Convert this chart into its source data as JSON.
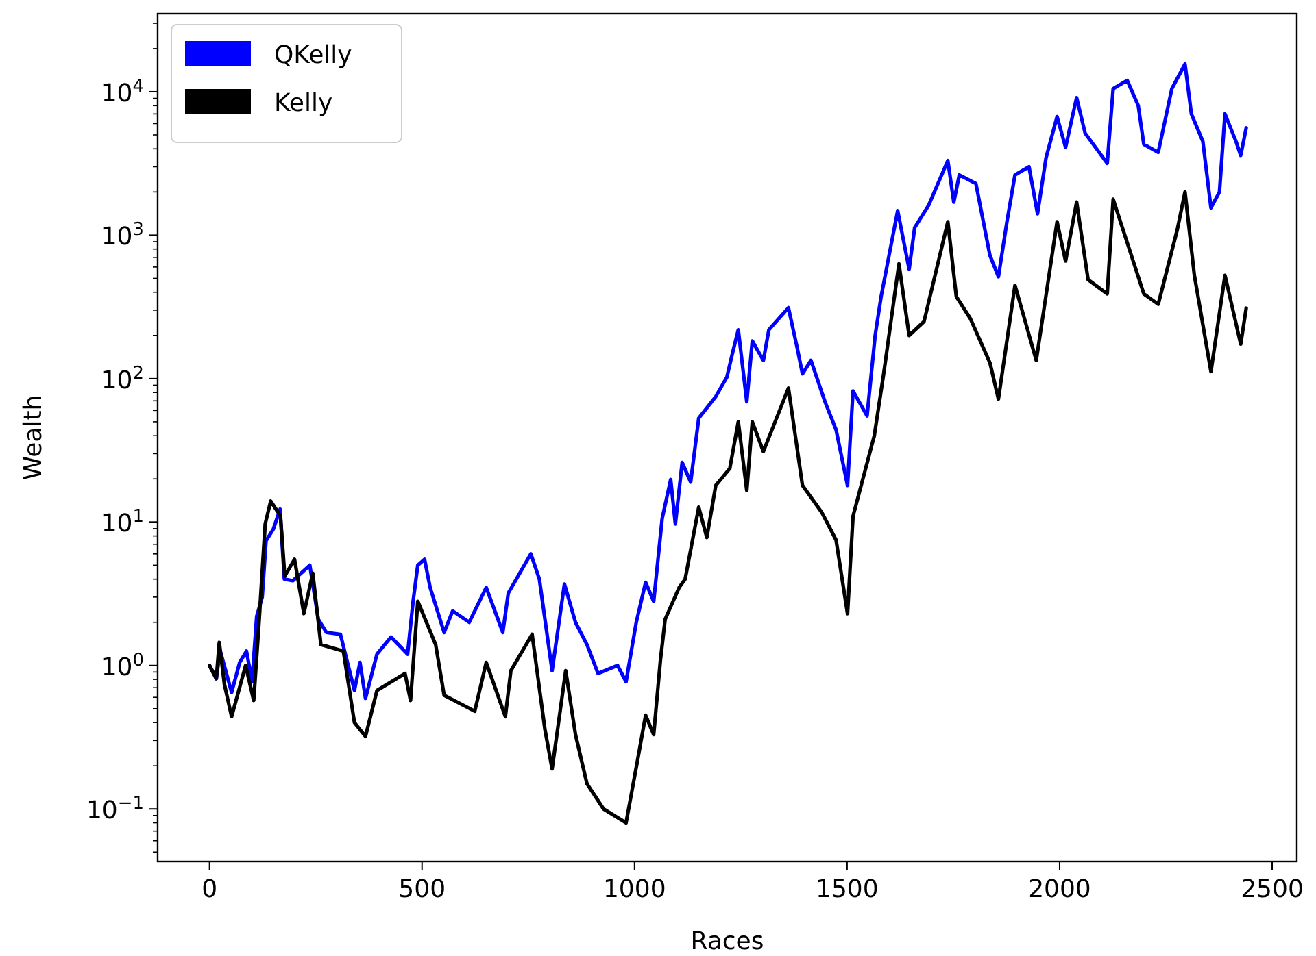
{
  "chart_data": {
    "type": "line",
    "xlabel": "Races",
    "ylabel": "Wealth",
    "log": "y",
    "grid": false,
    "legend": "top left",
    "marker": "none",
    "line_style": "solid",
    "xlim": [
      -122,
      2558
    ],
    "xticks": [
      0,
      500,
      1000,
      1500,
      2000,
      2500
    ],
    "ylim": [
      0.043,
      35000
    ],
    "yticks": [
      {
        "value": 0.1,
        "label": "10$^{−1}$"
      },
      {
        "value": 1,
        "label": "10$^{0}$"
      },
      {
        "value": 10,
        "label": "10$^{1}$"
      },
      {
        "value": 100,
        "label": "10$^{2}$"
      },
      {
        "value": 1000,
        "label": "10$^{3}$"
      },
      {
        "value": 10000,
        "label": "10$^{4}$"
      }
    ],
    "series": [
      {
        "name": "QKelly",
        "color": "#0000ff",
        "x": [
          0,
          16,
          25,
          52,
          71,
          87,
          100,
          111,
          124,
          133,
          150,
          166,
          176,
          196,
          236,
          256,
          275,
          308,
          341,
          354,
          367,
          394,
          427,
          466,
          479,
          490,
          506,
          519,
          552,
          572,
          611,
          651,
          690,
          703,
          756,
          776,
          806,
          835,
          861,
          888,
          914,
          960,
          980,
          1004,
          1026,
          1045,
          1065,
          1085,
          1096,
          1112,
          1132,
          1151,
          1191,
          1217,
          1231,
          1244,
          1264,
          1277,
          1303,
          1316,
          1362,
          1382,
          1395,
          1415,
          1448,
          1474,
          1501,
          1514,
          1547,
          1566,
          1580,
          1619,
          1646,
          1659,
          1692,
          1737,
          1751,
          1764,
          1803,
          1836,
          1856,
          1876,
          1895,
          1928,
          1948,
          1968,
          1994,
          2014,
          2040,
          2060,
          2112,
          2126,
          2159,
          2185,
          2198,
          2232,
          2264,
          2295,
          2310,
          2337,
          2356,
          2376,
          2389,
          2415,
          2426,
          2439
        ],
        "values": [
          1.0,
          0.81,
          1.27,
          0.65,
          1.05,
          1.26,
          0.77,
          2.2,
          3.0,
          7.4,
          8.9,
          12.3,
          4.0,
          3.9,
          5.0,
          2.1,
          1.7,
          1.65,
          0.67,
          1.05,
          0.59,
          1.2,
          1.58,
          1.2,
          2.8,
          5.0,
          5.5,
          3.5,
          1.7,
          2.4,
          2.0,
          3.5,
          1.7,
          3.2,
          6.0,
          4.0,
          0.92,
          3.7,
          2.0,
          1.4,
          0.88,
          1.0,
          0.77,
          2.0,
          3.8,
          2.8,
          10.6,
          19.8,
          9.7,
          26,
          19,
          53,
          75,
          102,
          153,
          219,
          69,
          183,
          134,
          219,
          312,
          167,
          108,
          134,
          69,
          44,
          18,
          82,
          55,
          200,
          373,
          1480,
          580,
          1130,
          1620,
          3310,
          1700,
          2630,
          2290,
          724,
          513,
          1240,
          2630,
          3000,
          1410,
          3460,
          6700,
          4100,
          9100,
          5140,
          3170,
          10500,
          12000,
          8000,
          4300,
          3780,
          10500,
          15600,
          7000,
          4500,
          1550,
          2000,
          7000,
          4500,
          3600,
          5600
        ]
      },
      {
        "name": "Kelly",
        "color": "#000000",
        "x": [
          0,
          16,
          23,
          35,
          52,
          85,
          104,
          117,
          131,
          144,
          167,
          177,
          200,
          222,
          243,
          262,
          315,
          341,
          367,
          394,
          460,
          473,
          490,
          532,
          552,
          624,
          651,
          696,
          709,
          759,
          789,
          806,
          838,
          861,
          888,
          927,
          980,
          1006,
          1026,
          1045,
          1061,
          1072,
          1105,
          1119,
          1151,
          1170,
          1191,
          1224,
          1244,
          1264,
          1277,
          1303,
          1362,
          1395,
          1441,
          1474,
          1501,
          1514,
          1564,
          1586,
          1622,
          1646,
          1681,
          1737,
          1757,
          1790,
          1836,
          1856,
          1895,
          1945,
          1994,
          2014,
          2040,
          2067,
          2112,
          2126,
          2198,
          2232,
          2277,
          2295,
          2317,
          2356,
          2389,
          2426,
          2439
        ],
        "values": [
          1.0,
          0.81,
          1.45,
          0.74,
          0.44,
          1.0,
          0.57,
          2.1,
          9.7,
          14,
          11,
          4.2,
          5.5,
          2.3,
          4.4,
          1.4,
          1.26,
          0.4,
          0.32,
          0.67,
          0.88,
          0.57,
          2.8,
          1.4,
          0.62,
          0.48,
          1.05,
          0.44,
          0.92,
          1.65,
          0.36,
          0.19,
          0.92,
          0.33,
          0.15,
          0.1,
          0.08,
          0.21,
          0.45,
          0.33,
          1.1,
          2.1,
          3.5,
          4.0,
          12.7,
          7.8,
          18,
          23.6,
          50,
          16.6,
          50,
          31,
          86,
          18,
          11.6,
          7.5,
          2.3,
          11,
          40,
          108,
          630,
          200,
          250,
          1240,
          373,
          262,
          129,
          72,
          447,
          134,
          1240,
          660,
          1700,
          490,
          390,
          1780,
          390,
          330,
          1100,
          2000,
          525,
          112,
          525,
          174,
          310
        ]
      }
    ]
  }
}
